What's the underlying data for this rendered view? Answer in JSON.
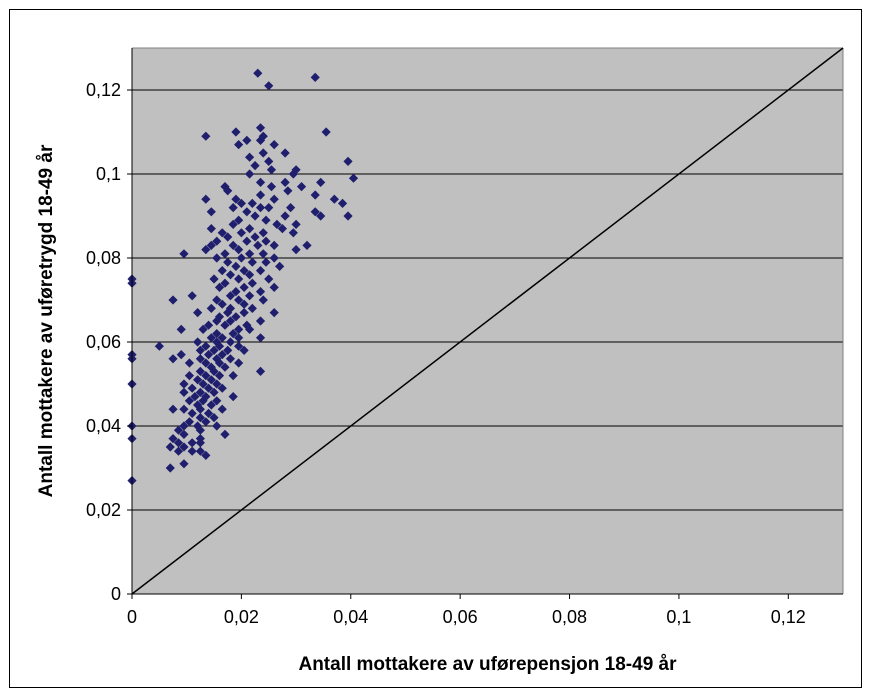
{
  "chart_data": {
    "type": "scatter",
    "title": "",
    "xlabel": "Antall mottakere av uførepensjon 18-49 år",
    "ylabel": "Antall mottakere av uføretrygd 18-49 år",
    "xlim": [
      0,
      0.13
    ],
    "ylim": [
      0,
      0.13
    ],
    "x_ticks": [
      0,
      0.02,
      0.04,
      0.06,
      0.08,
      0.1,
      0.12
    ],
    "x_tick_labels": [
      "0",
      "0,02",
      "0,04",
      "0,06",
      "0,08",
      "0,1",
      "0,12"
    ],
    "y_ticks": [
      0,
      0.02,
      0.04,
      0.06,
      0.08,
      0.1,
      0.12
    ],
    "y_tick_labels": [
      "0",
      "0,02",
      "0,04",
      "0,06",
      "0,08",
      "0,1",
      "0,12"
    ],
    "grid": "horizontal",
    "plot_background": "#c0c0c0",
    "marker_color": "#1f1f6e",
    "marker": "diamond",
    "reference_line": {
      "from": [
        0,
        0
      ],
      "to": [
        0.13,
        0.13
      ]
    },
    "series": [
      {
        "values_xy": [
          [
            0.0,
            0.075
          ],
          [
            0.0,
            0.074
          ],
          [
            0.0,
            0.057
          ],
          [
            0.0,
            0.056
          ],
          [
            0.0,
            0.05
          ],
          [
            0.0,
            0.04
          ],
          [
            0.0,
            0.037
          ],
          [
            0.0,
            0.027
          ],
          [
            0.023,
            0.124
          ],
          [
            0.0335,
            0.123
          ],
          [
            0.025,
            0.121
          ],
          [
            0.0235,
            0.111
          ],
          [
            0.024,
            0.109
          ],
          [
            0.0355,
            0.11
          ],
          [
            0.019,
            0.11
          ],
          [
            0.0235,
            0.108
          ],
          [
            0.026,
            0.107
          ],
          [
            0.021,
            0.108
          ],
          [
            0.0135,
            0.109
          ],
          [
            0.0195,
            0.107
          ],
          [
            0.024,
            0.105
          ],
          [
            0.028,
            0.105
          ],
          [
            0.0215,
            0.104
          ],
          [
            0.0225,
            0.102
          ],
          [
            0.025,
            0.103
          ],
          [
            0.0215,
            0.1
          ],
          [
            0.0255,
            0.101
          ],
          [
            0.03,
            0.101
          ],
          [
            0.0295,
            0.1
          ],
          [
            0.0395,
            0.103
          ],
          [
            0.017,
            0.097
          ],
          [
            0.0405,
            0.099
          ],
          [
            0.0235,
            0.098
          ],
          [
            0.0255,
            0.097
          ],
          [
            0.028,
            0.098
          ],
          [
            0.0285,
            0.096
          ],
          [
            0.031,
            0.097
          ],
          [
            0.0345,
            0.098
          ],
          [
            0.0175,
            0.096
          ],
          [
            0.0235,
            0.095
          ],
          [
            0.019,
            0.094
          ],
          [
            0.026,
            0.094
          ],
          [
            0.0335,
            0.095
          ],
          [
            0.037,
            0.094
          ],
          [
            0.0135,
            0.094
          ],
          [
            0.02,
            0.093
          ],
          [
            0.022,
            0.093
          ],
          [
            0.025,
            0.092
          ],
          [
            0.0385,
            0.093
          ],
          [
            0.0185,
            0.092
          ],
          [
            0.0235,
            0.092
          ],
          [
            0.021,
            0.091
          ],
          [
            0.029,
            0.092
          ],
          [
            0.0335,
            0.091
          ],
          [
            0.0395,
            0.09
          ],
          [
            0.0145,
            0.091
          ],
          [
            0.0225,
            0.09
          ],
          [
            0.028,
            0.09
          ],
          [
            0.0345,
            0.09
          ],
          [
            0.0195,
            0.089
          ],
          [
            0.0245,
            0.089
          ],
          [
            0.0265,
            0.088
          ],
          [
            0.0185,
            0.088
          ],
          [
            0.0215,
            0.087
          ],
          [
            0.03,
            0.088
          ],
          [
            0.0145,
            0.087
          ],
          [
            0.02,
            0.086
          ],
          [
            0.024,
            0.086
          ],
          [
            0.0275,
            0.087
          ],
          [
            0.0165,
            0.086
          ],
          [
            0.0225,
            0.085
          ],
          [
            0.0295,
            0.086
          ],
          [
            0.0175,
            0.085
          ],
          [
            0.021,
            0.084
          ],
          [
            0.0245,
            0.084
          ],
          [
            0.0155,
            0.084
          ],
          [
            0.0185,
            0.083
          ],
          [
            0.023,
            0.083
          ],
          [
            0.026,
            0.083
          ],
          [
            0.032,
            0.083
          ],
          [
            0.0145,
            0.083
          ],
          [
            0.0195,
            0.082
          ],
          [
            0.0215,
            0.081
          ],
          [
            0.03,
            0.082
          ],
          [
            0.0135,
            0.082
          ],
          [
            0.017,
            0.081
          ],
          [
            0.024,
            0.081
          ],
          [
            0.02,
            0.08
          ],
          [
            0.026,
            0.08
          ],
          [
            0.0095,
            0.081
          ],
          [
            0.0155,
            0.08
          ],
          [
            0.022,
            0.079
          ],
          [
            0.0175,
            0.079
          ],
          [
            0.0245,
            0.079
          ],
          [
            0.019,
            0.078
          ],
          [
            0.027,
            0.078
          ],
          [
            0.0205,
            0.077
          ],
          [
            0.0165,
            0.077
          ],
          [
            0.0235,
            0.077
          ],
          [
            0.018,
            0.076
          ],
          [
            0.0215,
            0.076
          ],
          [
            0.025,
            0.075
          ],
          [
            0.015,
            0.075
          ],
          [
            0.0195,
            0.075
          ],
          [
            0.022,
            0.074
          ],
          [
            0.017,
            0.074
          ],
          [
            0.0205,
            0.073
          ],
          [
            0.026,
            0.073
          ],
          [
            0.016,
            0.073
          ],
          [
            0.019,
            0.072
          ],
          [
            0.0235,
            0.072
          ],
          [
            0.011,
            0.071
          ],
          [
            0.018,
            0.071
          ],
          [
            0.0215,
            0.071
          ],
          [
            0.0155,
            0.07
          ],
          [
            0.0195,
            0.07
          ],
          [
            0.024,
            0.07
          ],
          [
            0.0075,
            0.07
          ],
          [
            0.0165,
            0.069
          ],
          [
            0.0205,
            0.069
          ],
          [
            0.018,
            0.068
          ],
          [
            0.022,
            0.068
          ],
          [
            0.0145,
            0.068
          ],
          [
            0.0175,
            0.067
          ],
          [
            0.0205,
            0.067
          ],
          [
            0.026,
            0.067
          ],
          [
            0.012,
            0.067
          ],
          [
            0.016,
            0.066
          ],
          [
            0.019,
            0.066
          ],
          [
            0.0235,
            0.065
          ],
          [
            0.0155,
            0.065
          ],
          [
            0.018,
            0.065
          ],
          [
            0.021,
            0.064
          ],
          [
            0.014,
            0.064
          ],
          [
            0.017,
            0.064
          ],
          [
            0.0195,
            0.063
          ],
          [
            0.0215,
            0.063
          ],
          [
            0.013,
            0.063
          ],
          [
            0.0155,
            0.062
          ],
          [
            0.0185,
            0.062
          ],
          [
            0.009,
            0.063
          ],
          [
            0.0145,
            0.061
          ],
          [
            0.0165,
            0.061
          ],
          [
            0.0195,
            0.061
          ],
          [
            0.0235,
            0.061
          ],
          [
            0.012,
            0.06
          ],
          [
            0.0155,
            0.06
          ],
          [
            0.018,
            0.06
          ],
          [
            0.0135,
            0.059
          ],
          [
            0.016,
            0.059
          ],
          [
            0.0195,
            0.059
          ],
          [
            0.005,
            0.059
          ],
          [
            0.0125,
            0.058
          ],
          [
            0.015,
            0.058
          ],
          [
            0.0175,
            0.058
          ],
          [
            0.0205,
            0.058
          ],
          [
            0.014,
            0.057
          ],
          [
            0.0165,
            0.057
          ],
          [
            0.009,
            0.057
          ],
          [
            0.0125,
            0.056
          ],
          [
            0.0155,
            0.056
          ],
          [
            0.018,
            0.056
          ],
          [
            0.0075,
            0.056
          ],
          [
            0.0135,
            0.055
          ],
          [
            0.016,
            0.055
          ],
          [
            0.0195,
            0.055
          ],
          [
            0.0105,
            0.055
          ],
          [
            0.0145,
            0.054
          ],
          [
            0.017,
            0.054
          ],
          [
            0.0125,
            0.053
          ],
          [
            0.015,
            0.053
          ],
          [
            0.0235,
            0.053
          ],
          [
            0.0105,
            0.052
          ],
          [
            0.0135,
            0.052
          ],
          [
            0.016,
            0.052
          ],
          [
            0.0185,
            0.052
          ],
          [
            0.012,
            0.051
          ],
          [
            0.0145,
            0.051
          ],
          [
            0.0095,
            0.05
          ],
          [
            0.013,
            0.05
          ],
          [
            0.0155,
            0.05
          ],
          [
            0.011,
            0.049
          ],
          [
            0.014,
            0.049
          ],
          [
            0.0165,
            0.049
          ],
          [
            0.0095,
            0.048
          ],
          [
            0.0125,
            0.048
          ],
          [
            0.015,
            0.048
          ],
          [
            0.0115,
            0.047
          ],
          [
            0.0135,
            0.047
          ],
          [
            0.0185,
            0.047
          ],
          [
            0.0105,
            0.046
          ],
          [
            0.013,
            0.046
          ],
          [
            0.0155,
            0.046
          ],
          [
            0.012,
            0.045
          ],
          [
            0.0145,
            0.045
          ],
          [
            0.0095,
            0.044
          ],
          [
            0.0125,
            0.044
          ],
          [
            0.0165,
            0.044
          ],
          [
            0.0075,
            0.044
          ],
          [
            0.011,
            0.043
          ],
          [
            0.014,
            0.043
          ],
          [
            0.0125,
            0.042
          ],
          [
            0.015,
            0.042
          ],
          [
            0.0105,
            0.041
          ],
          [
            0.0135,
            0.041
          ],
          [
            0.0095,
            0.04
          ],
          [
            0.012,
            0.04
          ],
          [
            0.0155,
            0.04
          ],
          [
            0.0085,
            0.039
          ],
          [
            0.0125,
            0.039
          ],
          [
            0.017,
            0.038
          ],
          [
            0.0095,
            0.038
          ],
          [
            0.0125,
            0.037
          ],
          [
            0.0075,
            0.037
          ],
          [
            0.011,
            0.036
          ],
          [
            0.0085,
            0.036
          ],
          [
            0.0125,
            0.036
          ],
          [
            0.0095,
            0.035
          ],
          [
            0.007,
            0.035
          ],
          [
            0.011,
            0.034
          ],
          [
            0.0085,
            0.034
          ],
          [
            0.0125,
            0.034
          ],
          [
            0.0135,
            0.033
          ],
          [
            0.0095,
            0.031
          ],
          [
            0.007,
            0.03
          ]
        ]
      }
    ]
  }
}
